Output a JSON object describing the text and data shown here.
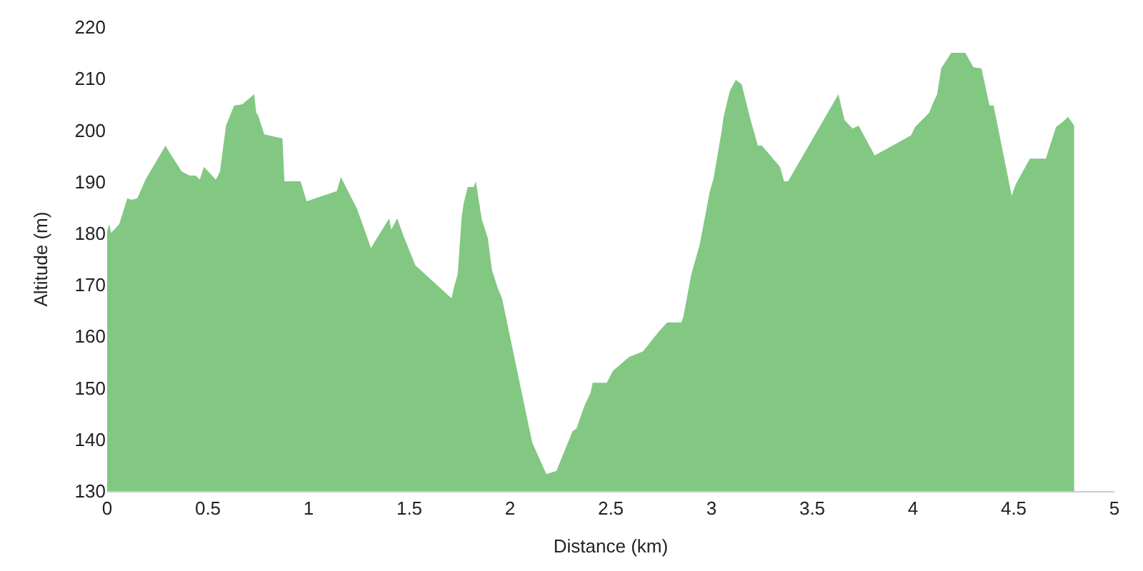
{
  "chart_data": {
    "type": "area",
    "xlabel": "Distance (km)",
    "ylabel": "Altitude (m)",
    "xlim": [
      0,
      5
    ],
    "xticks": [
      0,
      0.5,
      1,
      1.5,
      2,
      2.5,
      3,
      3.5,
      4,
      4.5,
      5
    ],
    "ylim": [
      130,
      220
    ],
    "yticks": [
      130,
      140,
      150,
      160,
      170,
      180,
      190,
      200,
      210,
      220
    ],
    "series": [
      {
        "color": "#82c882",
        "x": [
          0,
          0.01,
          0.02,
          0.06,
          0.1,
          0.12,
          0.15,
          0.19,
          0.29,
          0.3,
          0.37,
          0.41,
          0.44,
          0.46,
          0.48,
          0.54,
          0.56,
          0.59,
          0.63,
          0.67,
          0.73,
          0.74,
          0.75,
          0.78,
          0.87,
          0.88,
          0.96,
          0.99,
          1.14,
          1.16,
          1.24,
          1.31,
          1.33,
          1.4,
          1.41,
          1.44,
          1.47,
          1.53,
          1.71,
          1.72,
          1.74,
          1.76,
          1.77,
          1.79,
          1.82,
          1.83,
          1.86,
          1.89,
          1.91,
          1.94,
          1.96,
          2.11,
          2.18,
          2.23,
          2.31,
          2.33,
          2.37,
          2.4,
          2.41,
          2.48,
          2.51,
          2.59,
          2.66,
          2.74,
          2.78,
          2.85,
          2.86,
          2.9,
          2.94,
          2.97,
          2.99,
          3.01,
          3.05,
          3.06,
          3.09,
          3.12,
          3.15,
          3.19,
          3.23,
          3.25,
          3.34,
          3.36,
          3.38,
          3.63,
          3.66,
          3.7,
          3.73,
          3.81,
          3.99,
          4.01,
          4.06,
          4.08,
          4.1,
          4.12,
          4.14,
          4.19,
          4.26,
          4.3,
          4.34,
          4.38,
          4.4,
          4.49,
          4.51,
          4.58,
          4.66,
          4.68,
          4.71,
          4.74,
          4.77,
          4.8
        ],
        "values": [
          180.4,
          181.8,
          180.1,
          181.8,
          186.8,
          186.5,
          186.8,
          190.4,
          197,
          196.3,
          192,
          191.2,
          191.2,
          190.4,
          192.9,
          190.4,
          192,
          200.9,
          204.8,
          205,
          207,
          203.4,
          202.8,
          199.2,
          198.4,
          190.1,
          190.1,
          186.2,
          188.2,
          190.9,
          184.8,
          177.1,
          178.5,
          182.9,
          180.7,
          182.9,
          179.6,
          173.8,
          167.4,
          169.3,
          172.1,
          183.2,
          185.9,
          189,
          189,
          190.1,
          182.6,
          179,
          172.9,
          169.3,
          167.4,
          139.4,
          133.3,
          133.9,
          141.6,
          142.2,
          146.6,
          149.1,
          151,
          151,
          153.3,
          156,
          157.1,
          161,
          162.7,
          162.7,
          163.8,
          172.1,
          177.6,
          183.7,
          187.9,
          190.6,
          199.8,
          202.6,
          207.5,
          209.8,
          208.9,
          202.6,
          197,
          197,
          192.9,
          190.1,
          190.1,
          207,
          202,
          200.3,
          200.9,
          195.1,
          199,
          200.6,
          202.6,
          203.4,
          205.3,
          207,
          212,
          215,
          215,
          212.2,
          212,
          204.8,
          204.8,
          187.3,
          189.5,
          194.5,
          194.5,
          197,
          200.6,
          201.5,
          202.6,
          200.9
        ]
      }
    ]
  }
}
